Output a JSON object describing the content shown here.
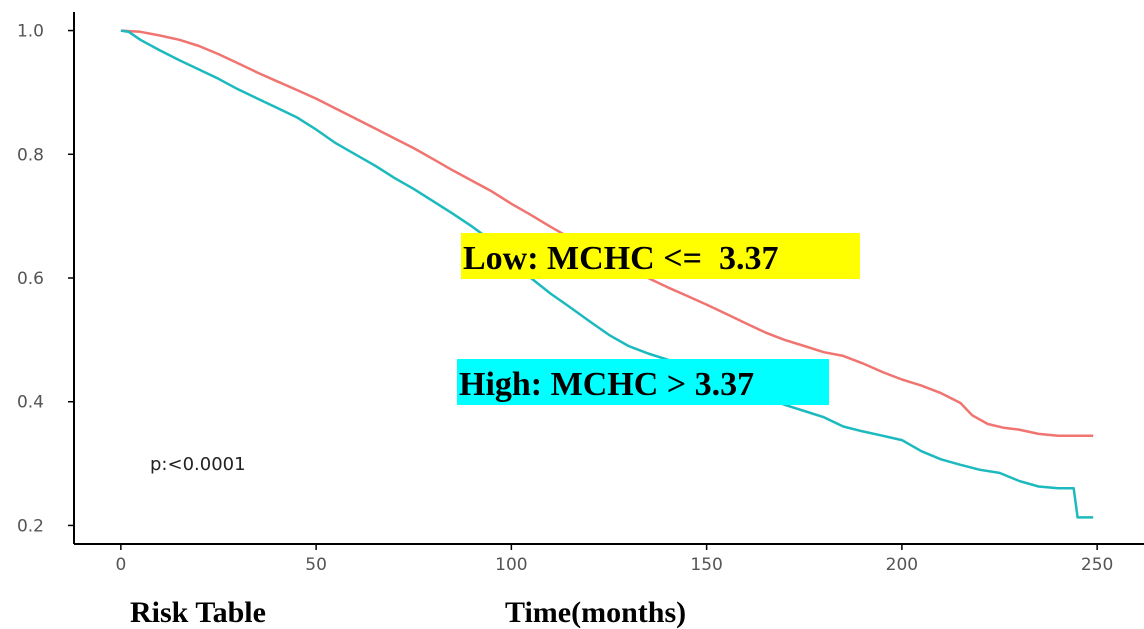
{
  "chart_data": {
    "type": "line",
    "title": "",
    "xlabel": "Time(months)",
    "ylabel": "",
    "xlim": [
      -12,
      262
    ],
    "ylim": [
      0.17,
      1.03
    ],
    "x_ticks": [
      0,
      50,
      100,
      150,
      200,
      250
    ],
    "y_ticks": [
      0.2,
      0.4,
      0.6,
      0.8,
      1.0
    ],
    "x_tick_labels": [
      "0",
      "50",
      "100",
      "150",
      "200",
      "250"
    ],
    "y_tick_labels": [
      "0.2",
      "0.4",
      "0.6",
      "0.8",
      "1.0"
    ],
    "grid": false,
    "step": true,
    "series": [
      {
        "name": "Low: MCHC <=  3.37",
        "color": "#f07470",
        "label_bg": "#ffff00",
        "points": [
          [
            0,
            1.0
          ],
          [
            5,
            0.998
          ],
          [
            10,
            0.992
          ],
          [
            15,
            0.985
          ],
          [
            20,
            0.975
          ],
          [
            25,
            0.962
          ],
          [
            30,
            0.947
          ],
          [
            35,
            0.932
          ],
          [
            40,
            0.918
          ],
          [
            45,
            0.904
          ],
          [
            50,
            0.89
          ],
          [
            55,
            0.874
          ],
          [
            60,
            0.858
          ],
          [
            65,
            0.842
          ],
          [
            70,
            0.826
          ],
          [
            75,
            0.81
          ],
          [
            80,
            0.792
          ],
          [
            85,
            0.774
          ],
          [
            90,
            0.757
          ],
          [
            95,
            0.74
          ],
          [
            100,
            0.72
          ],
          [
            105,
            0.702
          ],
          [
            110,
            0.683
          ],
          [
            115,
            0.665
          ],
          [
            120,
            0.648
          ],
          [
            125,
            0.632
          ],
          [
            130,
            0.616
          ],
          [
            135,
            0.6
          ],
          [
            140,
            0.585
          ],
          [
            145,
            0.571
          ],
          [
            150,
            0.557
          ],
          [
            155,
            0.542
          ],
          [
            160,
            0.527
          ],
          [
            165,
            0.512
          ],
          [
            170,
            0.5
          ],
          [
            175,
            0.49
          ],
          [
            180,
            0.48
          ],
          [
            185,
            0.474
          ],
          [
            190,
            0.462
          ],
          [
            195,
            0.448
          ],
          [
            200,
            0.436
          ],
          [
            205,
            0.426
          ],
          [
            210,
            0.414
          ],
          [
            215,
            0.398
          ],
          [
            218,
            0.378
          ],
          [
            222,
            0.364
          ],
          [
            226,
            0.358
          ],
          [
            230,
            0.355
          ],
          [
            235,
            0.348
          ],
          [
            240,
            0.345
          ],
          [
            249,
            0.345
          ]
        ]
      },
      {
        "name": "High: MCHC > 3.37",
        "color": "#1cb9be",
        "label_bg": "#00ffff",
        "points": [
          [
            0,
            1.0
          ],
          [
            2,
            0.998
          ],
          [
            5,
            0.985
          ],
          [
            10,
            0.968
          ],
          [
            15,
            0.952
          ],
          [
            20,
            0.937
          ],
          [
            25,
            0.922
          ],
          [
            30,
            0.905
          ],
          [
            35,
            0.89
          ],
          [
            40,
            0.875
          ],
          [
            45,
            0.86
          ],
          [
            50,
            0.84
          ],
          [
            55,
            0.818
          ],
          [
            60,
            0.8
          ],
          [
            65,
            0.782
          ],
          [
            70,
            0.762
          ],
          [
            75,
            0.744
          ],
          [
            80,
            0.724
          ],
          [
            85,
            0.704
          ],
          [
            90,
            0.683
          ],
          [
            95,
            0.66
          ],
          [
            100,
            0.637
          ],
          [
            105,
            0.6
          ],
          [
            110,
            0.575
          ],
          [
            115,
            0.553
          ],
          [
            120,
            0.53
          ],
          [
            125,
            0.508
          ],
          [
            130,
            0.49
          ],
          [
            135,
            0.478
          ],
          [
            140,
            0.468
          ],
          [
            145,
            0.46
          ],
          [
            150,
            0.45
          ],
          [
            155,
            0.435
          ],
          [
            160,
            0.42
          ],
          [
            165,
            0.407
          ],
          [
            170,
            0.395
          ],
          [
            175,
            0.385
          ],
          [
            180,
            0.375
          ],
          [
            185,
            0.36
          ],
          [
            190,
            0.352
          ],
          [
            195,
            0.345
          ],
          [
            200,
            0.338
          ],
          [
            205,
            0.32
          ],
          [
            210,
            0.307
          ],
          [
            215,
            0.298
          ],
          [
            220,
            0.29
          ],
          [
            225,
            0.285
          ],
          [
            230,
            0.272
          ],
          [
            235,
            0.263
          ],
          [
            240,
            0.26
          ],
          [
            244,
            0.26
          ],
          [
            245,
            0.213
          ],
          [
            249,
            0.213
          ]
        ]
      }
    ],
    "annotations": {
      "p_value": "p:<0.0001",
      "risk_table": "Risk Table"
    }
  }
}
